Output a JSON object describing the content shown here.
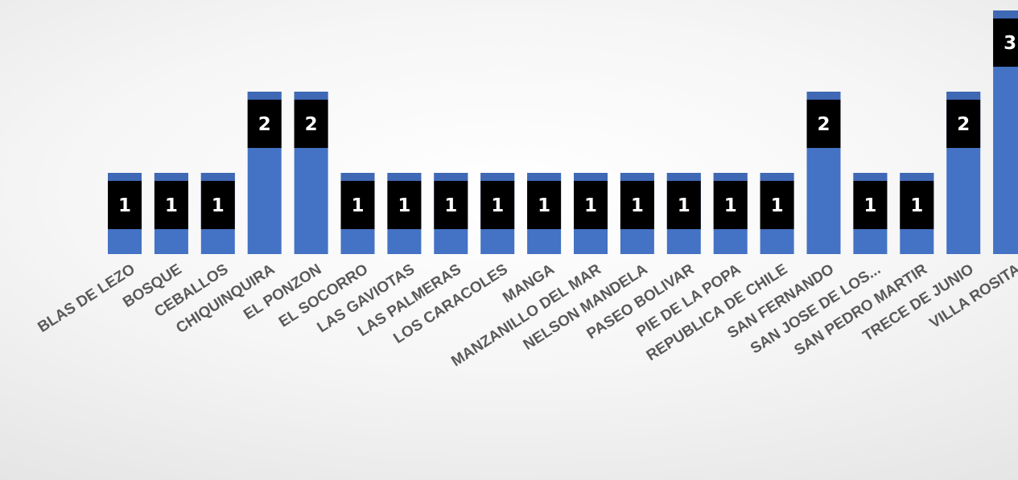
{
  "chart_data": {
    "type": "bar",
    "categories": [
      "BLAS DE LEZO",
      "BOSQUE",
      "CEBALLOS",
      "CHIQUINQUIRA",
      "EL PONZON",
      "EL SOCORRO",
      "LAS GAVIOTAS",
      "LAS PALMERAS",
      "LOS CARACOLES",
      "MANGA",
      "MANZANILLO DEL MAR",
      "NELSON MANDELA",
      "PASEO BOLIVAR",
      "PIE DE LA POPA",
      "REPUBLICA DE CHILE",
      "SAN FERNANDO",
      "SAN JOSE DE LOS...",
      "SAN PEDRO MARTIR",
      "TRECE DE JUNIO",
      "VILLA ROSITA"
    ],
    "values": [
      1,
      1,
      1,
      2,
      2,
      1,
      1,
      1,
      1,
      1,
      1,
      1,
      1,
      1,
      1,
      2,
      1,
      1,
      2,
      3
    ],
    "ylim": [
      0,
      3
    ],
    "grid": false,
    "legend": "none",
    "colors": {
      "bar": "#4472c4",
      "label_box": "#000000",
      "label_text": "#ffffff",
      "tick_text": "#595959"
    }
  }
}
